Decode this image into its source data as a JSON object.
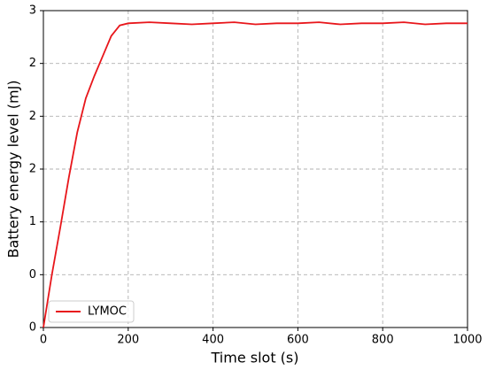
{
  "chart_data": {
    "type": "line",
    "xlabel": "Time slot (s)",
    "ylabel": "Battery energy level (mJ)",
    "x": [
      0,
      20,
      40,
      60,
      80,
      100,
      120,
      140,
      160,
      180,
      200,
      250,
      300,
      350,
      400,
      450,
      500,
      550,
      600,
      650,
      700,
      750,
      800,
      850,
      900,
      950,
      1000
    ],
    "series": [
      {
        "name": "LYMOC",
        "color": "#e8161b",
        "values": [
          0,
          0.5,
          0.95,
          1.42,
          1.85,
          2.17,
          2.38,
          2.57,
          2.76,
          2.86,
          2.88,
          2.89,
          2.88,
          2.87,
          2.88,
          2.89,
          2.87,
          2.88,
          2.88,
          2.89,
          2.87,
          2.88,
          2.88,
          2.89,
          2.87,
          2.88,
          2.88
        ]
      }
    ],
    "xlim": [
      0,
      1000
    ],
    "xticks": [
      0,
      200,
      400,
      600,
      800,
      1000
    ],
    "ylim": [
      0,
      3
    ],
    "yticks": [
      0,
      {
        "value": 0.5,
        "label": "0"
      },
      1,
      {
        "value": 1.5,
        "label": "2"
      },
      2,
      {
        "value": 2.5,
        "label": "2"
      },
      3
    ],
    "grid": true,
    "legend": "lower left"
  }
}
